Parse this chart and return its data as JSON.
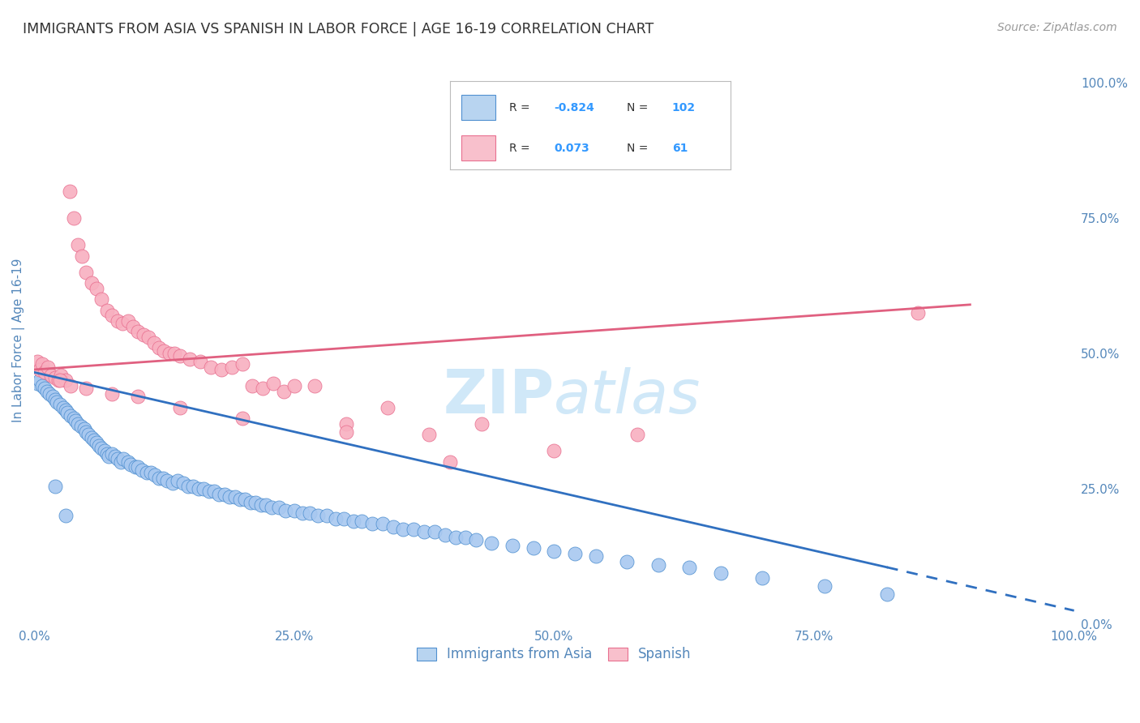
{
  "title": "IMMIGRANTS FROM ASIA VS SPANISH IN LABOR FORCE | AGE 16-19 CORRELATION CHART",
  "source": "Source: ZipAtlas.com",
  "ylabel_left": "In Labor Force | Age 16-19",
  "blue_R": -0.824,
  "blue_N": 102,
  "pink_R": 0.073,
  "pink_N": 61,
  "blue_color": "#a8c8f0",
  "pink_color": "#f8b0c0",
  "blue_edge_color": "#5090d0",
  "pink_edge_color": "#e87090",
  "blue_line_color": "#3070c0",
  "pink_line_color": "#e06080",
  "legend_blue_face": "#b8d4f0",
  "legend_pink_face": "#f8c0cc",
  "watermark_color": "#d0e8f8",
  "background_color": "#ffffff",
  "grid_color": "#cccccc",
  "title_color": "#333333",
  "tick_color": "#5588bb",
  "corr_text_color": "#333333",
  "corr_value_color": "#3399ff",
  "blue_scatter_x": [
    0.3,
    0.5,
    0.8,
    1.0,
    1.2,
    1.5,
    1.8,
    2.0,
    2.2,
    2.5,
    2.8,
    3.0,
    3.2,
    3.5,
    3.8,
    4.0,
    4.2,
    4.5,
    4.8,
    5.0,
    5.2,
    5.5,
    5.8,
    6.0,
    6.2,
    6.5,
    6.8,
    7.0,
    7.2,
    7.5,
    7.8,
    8.0,
    8.3,
    8.6,
    9.0,
    9.3,
    9.7,
    10.0,
    10.4,
    10.8,
    11.2,
    11.6,
    12.0,
    12.4,
    12.8,
    13.3,
    13.8,
    14.3,
    14.8,
    15.3,
    15.8,
    16.3,
    16.8,
    17.3,
    17.8,
    18.3,
    18.8,
    19.3,
    19.8,
    20.3,
    20.8,
    21.3,
    21.8,
    22.3,
    22.8,
    23.5,
    24.2,
    25.0,
    25.8,
    26.5,
    27.3,
    28.1,
    29.0,
    29.8,
    30.7,
    31.5,
    32.5,
    33.5,
    34.5,
    35.5,
    36.5,
    37.5,
    38.5,
    39.5,
    40.5,
    41.5,
    42.5,
    44.0,
    46.0,
    48.0,
    50.0,
    52.0,
    54.0,
    57.0,
    60.0,
    63.0,
    66.0,
    70.0,
    76.0,
    82.0,
    2.0,
    3.0
  ],
  "blue_scatter_y": [
    44.5,
    45.0,
    44.0,
    43.5,
    43.0,
    42.5,
    42.0,
    41.5,
    41.0,
    40.5,
    40.0,
    39.5,
    39.0,
    38.5,
    38.0,
    37.5,
    37.0,
    36.5,
    36.0,
    35.5,
    35.0,
    34.5,
    34.0,
    33.5,
    33.0,
    32.5,
    32.0,
    31.5,
    31.0,
    31.5,
    31.0,
    30.5,
    30.0,
    30.5,
    30.0,
    29.5,
    29.0,
    29.0,
    28.5,
    28.0,
    28.0,
    27.5,
    27.0,
    27.0,
    26.5,
    26.0,
    26.5,
    26.0,
    25.5,
    25.5,
    25.0,
    25.0,
    24.5,
    24.5,
    24.0,
    24.0,
    23.5,
    23.5,
    23.0,
    23.0,
    22.5,
    22.5,
    22.0,
    22.0,
    21.5,
    21.5,
    21.0,
    21.0,
    20.5,
    20.5,
    20.0,
    20.0,
    19.5,
    19.5,
    19.0,
    19.0,
    18.5,
    18.5,
    18.0,
    17.5,
    17.5,
    17.0,
    17.0,
    16.5,
    16.0,
    16.0,
    15.5,
    15.0,
    14.5,
    14.0,
    13.5,
    13.0,
    12.5,
    11.5,
    11.0,
    10.5,
    9.5,
    8.5,
    7.0,
    5.5,
    25.5,
    20.0
  ],
  "pink_scatter_x": [
    0.3,
    0.5,
    0.8,
    1.0,
    1.3,
    1.6,
    2.0,
    2.3,
    2.6,
    3.0,
    3.4,
    3.8,
    4.2,
    4.6,
    5.0,
    5.5,
    6.0,
    6.5,
    7.0,
    7.5,
    8.0,
    8.5,
    9.0,
    9.5,
    10.0,
    10.5,
    11.0,
    11.5,
    12.0,
    12.5,
    13.0,
    13.5,
    14.0,
    15.0,
    16.0,
    17.0,
    18.0,
    19.0,
    20.0,
    21.0,
    22.0,
    23.0,
    24.0,
    25.0,
    27.0,
    30.0,
    34.0,
    38.0,
    43.0,
    50.0,
    58.0,
    85.0,
    2.5,
    3.5,
    5.0,
    7.5,
    10.0,
    14.0,
    20.0,
    30.0,
    40.0
  ],
  "pink_scatter_y": [
    48.5,
    47.0,
    48.0,
    46.5,
    47.5,
    46.0,
    45.5,
    45.0,
    46.0,
    45.0,
    80.0,
    75.0,
    70.0,
    68.0,
    65.0,
    63.0,
    62.0,
    60.0,
    58.0,
    57.0,
    56.0,
    55.5,
    56.0,
    55.0,
    54.0,
    53.5,
    53.0,
    52.0,
    51.0,
    50.5,
    50.0,
    50.0,
    49.5,
    49.0,
    48.5,
    47.5,
    47.0,
    47.5,
    48.0,
    44.0,
    43.5,
    44.5,
    43.0,
    44.0,
    44.0,
    37.0,
    40.0,
    35.0,
    37.0,
    32.0,
    35.0,
    57.5,
    45.0,
    44.0,
    43.5,
    42.5,
    42.0,
    40.0,
    38.0,
    35.5,
    30.0
  ],
  "blue_trend_x0": 0.0,
  "blue_trend_x1": 82.0,
  "blue_trend_y0": 46.5,
  "blue_trend_y1": 10.5,
  "blue_dash_x0": 82.0,
  "blue_dash_x1": 100.0,
  "blue_dash_y0": 10.5,
  "blue_dash_y1": 2.5,
  "pink_trend_x0": 0.0,
  "pink_trend_x1": 90.0,
  "pink_trend_y0": 47.0,
  "pink_trend_y1": 59.0,
  "xlim": [
    0,
    100
  ],
  "ylim": [
    0,
    105
  ],
  "xticks": [
    0,
    25,
    50,
    75,
    100
  ],
  "yticks_right": [
    0,
    25,
    50,
    75,
    100
  ]
}
